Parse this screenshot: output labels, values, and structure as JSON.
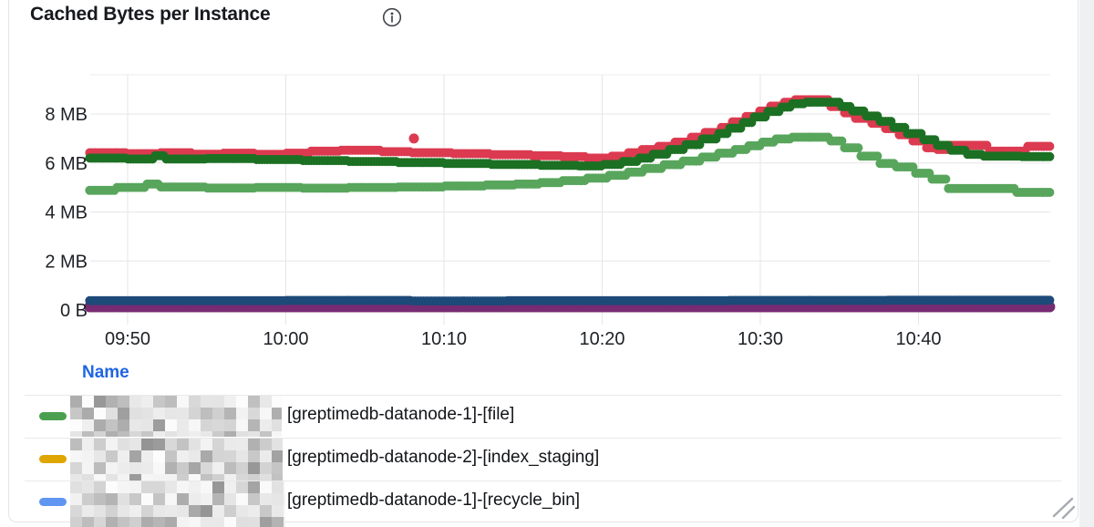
{
  "panel": {
    "title": "Cached Bytes per Instance"
  },
  "icons": {
    "info": "circled-i-info",
    "resize": "diagonal-grip-lines"
  },
  "colors": {
    "title_text": "#17191e",
    "axis_text": "#1d2025",
    "grid_line": "#e6e6e6",
    "legend_header_blue": "#2065e0",
    "panel_border": "#e2e5e9",
    "page_side_background": "#eef0f2"
  },
  "chart_data": {
    "type": "scatter",
    "title": "Cached Bytes per Instance",
    "point_style": "dots",
    "interpolation": "step-after",
    "legend_position": "bottom-table",
    "x_axis": {
      "label": "",
      "tick_labels": [
        "09:50",
        "10:00",
        "10:10",
        "10:20",
        "10:30",
        "10:40"
      ],
      "tick_minutes": [
        2,
        12,
        22,
        32,
        42,
        52
      ],
      "minutes_origin_label": "09:48",
      "range_minutes": [
        -0.4,
        60.3
      ],
      "grid": true
    },
    "y_axis": {
      "label": "",
      "tick_labels": [
        "0 B",
        "2 MB",
        "4 MB",
        "6 MB",
        "8 MB"
      ],
      "tick_values_mb": [
        0,
        2,
        4,
        6,
        8
      ],
      "range_mb": [
        0,
        9.6
      ],
      "grid": true
    },
    "series": [
      {
        "name": "crimson-series",
        "color": "#dc3a50",
        "radius": 5,
        "points": [
          [
            -0.4,
            6.42
          ],
          [
            2,
            6.38
          ],
          [
            4,
            6.42
          ],
          [
            6,
            6.36
          ],
          [
            8,
            6.4
          ],
          [
            10,
            6.35
          ],
          [
            12,
            6.4
          ],
          [
            13.5,
            6.48
          ],
          [
            15.5,
            6.52
          ],
          [
            18,
            6.46
          ],
          [
            20,
            6.42
          ],
          [
            22.5,
            6.38
          ],
          [
            25,
            6.34
          ],
          [
            27.5,
            6.3
          ],
          [
            29.5,
            6.26
          ],
          [
            31,
            6.2
          ],
          [
            32.5,
            6.28
          ],
          [
            33.5,
            6.42
          ],
          [
            34.5,
            6.55
          ],
          [
            35.5,
            6.68
          ],
          [
            36.5,
            6.85
          ],
          [
            37.5,
            7.05
          ],
          [
            38.5,
            7.25
          ],
          [
            39.4,
            7.45
          ],
          [
            40.2,
            7.68
          ],
          [
            41,
            7.9
          ],
          [
            41.8,
            8.12
          ],
          [
            42.6,
            8.32
          ],
          [
            43.4,
            8.48
          ],
          [
            44.2,
            8.58
          ],
          [
            45.6,
            8.58
          ],
          [
            46.4,
            8.3
          ],
          [
            47.2,
            8.05
          ],
          [
            48,
            7.82
          ],
          [
            48.9,
            7.62
          ],
          [
            49.8,
            7.4
          ],
          [
            50.7,
            7.15
          ],
          [
            51.6,
            6.9
          ],
          [
            52.4,
            6.62
          ],
          [
            53.2,
            6.55
          ],
          [
            54,
            6.72
          ],
          [
            55.6,
            6.72
          ],
          [
            56.4,
            6.48
          ],
          [
            58,
            6.48
          ],
          [
            58.8,
            6.68
          ],
          [
            60.3,
            6.68
          ]
        ]
      },
      {
        "name": "dark-green-series",
        "color": "#1c7023",
        "radius": 5,
        "points": [
          [
            -0.4,
            6.2
          ],
          [
            2,
            6.16
          ],
          [
            3.6,
            6.3
          ],
          [
            4.4,
            6.16
          ],
          [
            7,
            6.18
          ],
          [
            10,
            6.14
          ],
          [
            13,
            6.1
          ],
          [
            16,
            6.06
          ],
          [
            19,
            6.02
          ],
          [
            22,
            5.98
          ],
          [
            25,
            5.94
          ],
          [
            28,
            5.9
          ],
          [
            30.5,
            5.88
          ],
          [
            32,
            5.94
          ],
          [
            33.2,
            6.06
          ],
          [
            34.2,
            6.2
          ],
          [
            35.2,
            6.36
          ],
          [
            36.2,
            6.55
          ],
          [
            37.2,
            6.75
          ],
          [
            38.2,
            6.98
          ],
          [
            39.2,
            7.2
          ],
          [
            40,
            7.42
          ],
          [
            40.8,
            7.65
          ],
          [
            41.6,
            7.88
          ],
          [
            42.4,
            8.1
          ],
          [
            43.2,
            8.28
          ],
          [
            44,
            8.42
          ],
          [
            44.8,
            8.48
          ],
          [
            46.2,
            8.48
          ],
          [
            47,
            8.3
          ],
          [
            47.8,
            8.12
          ],
          [
            48.6,
            7.92
          ],
          [
            49.5,
            7.7
          ],
          [
            50.4,
            7.45
          ],
          [
            51.3,
            7.2
          ],
          [
            52.2,
            6.95
          ],
          [
            53.1,
            6.72
          ],
          [
            54,
            6.52
          ],
          [
            55,
            6.35
          ],
          [
            56,
            6.28
          ],
          [
            58.5,
            6.26
          ],
          [
            60.3,
            6.2
          ]
        ]
      },
      {
        "name": "light-green-series",
        "color": "#58a55c",
        "radius": 5,
        "points": [
          [
            -0.4,
            4.88
          ],
          [
            1.2,
            5.0
          ],
          [
            3.2,
            5.14
          ],
          [
            4,
            5.02
          ],
          [
            7,
            4.98
          ],
          [
            10,
            5.0
          ],
          [
            13,
            4.97
          ],
          [
            16,
            5.0
          ],
          [
            19,
            5.02
          ],
          [
            22,
            5.06
          ],
          [
            24.5,
            5.1
          ],
          [
            26.5,
            5.14
          ],
          [
            28,
            5.2
          ],
          [
            29.5,
            5.28
          ],
          [
            31,
            5.38
          ],
          [
            32.3,
            5.5
          ],
          [
            33.5,
            5.63
          ],
          [
            34.7,
            5.78
          ],
          [
            35.9,
            5.93
          ],
          [
            37.1,
            6.08
          ],
          [
            38.2,
            6.24
          ],
          [
            39.3,
            6.4
          ],
          [
            40.3,
            6.55
          ],
          [
            41.2,
            6.7
          ],
          [
            42.1,
            6.85
          ],
          [
            43,
            6.98
          ],
          [
            44,
            7.05
          ],
          [
            45.7,
            7.05
          ],
          [
            46.4,
            6.9
          ],
          [
            47.3,
            6.62
          ],
          [
            48.3,
            6.28
          ],
          [
            49.4,
            5.98
          ],
          [
            50.6,
            5.84
          ],
          [
            51.8,
            5.58
          ],
          [
            52.8,
            5.34
          ],
          [
            53.8,
            4.96
          ],
          [
            57.6,
            4.96
          ],
          [
            58.2,
            4.8
          ],
          [
            60.3,
            4.8
          ]
        ]
      },
      {
        "name": "navy-series",
        "color": "#1d4a78",
        "radius": 5,
        "points": [
          [
            -0.4,
            0.38
          ],
          [
            12,
            0.39
          ],
          [
            20,
            0.37
          ],
          [
            26,
            0.38
          ],
          [
            40,
            0.39
          ],
          [
            50,
            0.4
          ],
          [
            60.3,
            0.4
          ]
        ]
      },
      {
        "name": "purple-series",
        "color": "#772b72",
        "radius": 6,
        "points": [
          [
            -0.4,
            0.13
          ],
          [
            60.3,
            0.13
          ]
        ]
      }
    ],
    "outlier_points": [
      {
        "series": "crimson-series",
        "minute": 20.1,
        "value_mb": 7.0
      }
    ]
  },
  "legend": {
    "header": "Name",
    "header_color": "#2065e0",
    "rows": [
      {
        "swatch_color": "#4ba04f",
        "name_prefix_redacted": true,
        "label": "[greptimedb-datanode-1]-[file]"
      },
      {
        "swatch_color": "#dfa602",
        "name_prefix_redacted": true,
        "label": "[greptimedb-datanode-2]-[index_staging]"
      },
      {
        "swatch_color": "#6095f2",
        "name_prefix_redacted": true,
        "label": "[greptimedb-datanode-1]-[recycle_bin]"
      }
    ]
  }
}
